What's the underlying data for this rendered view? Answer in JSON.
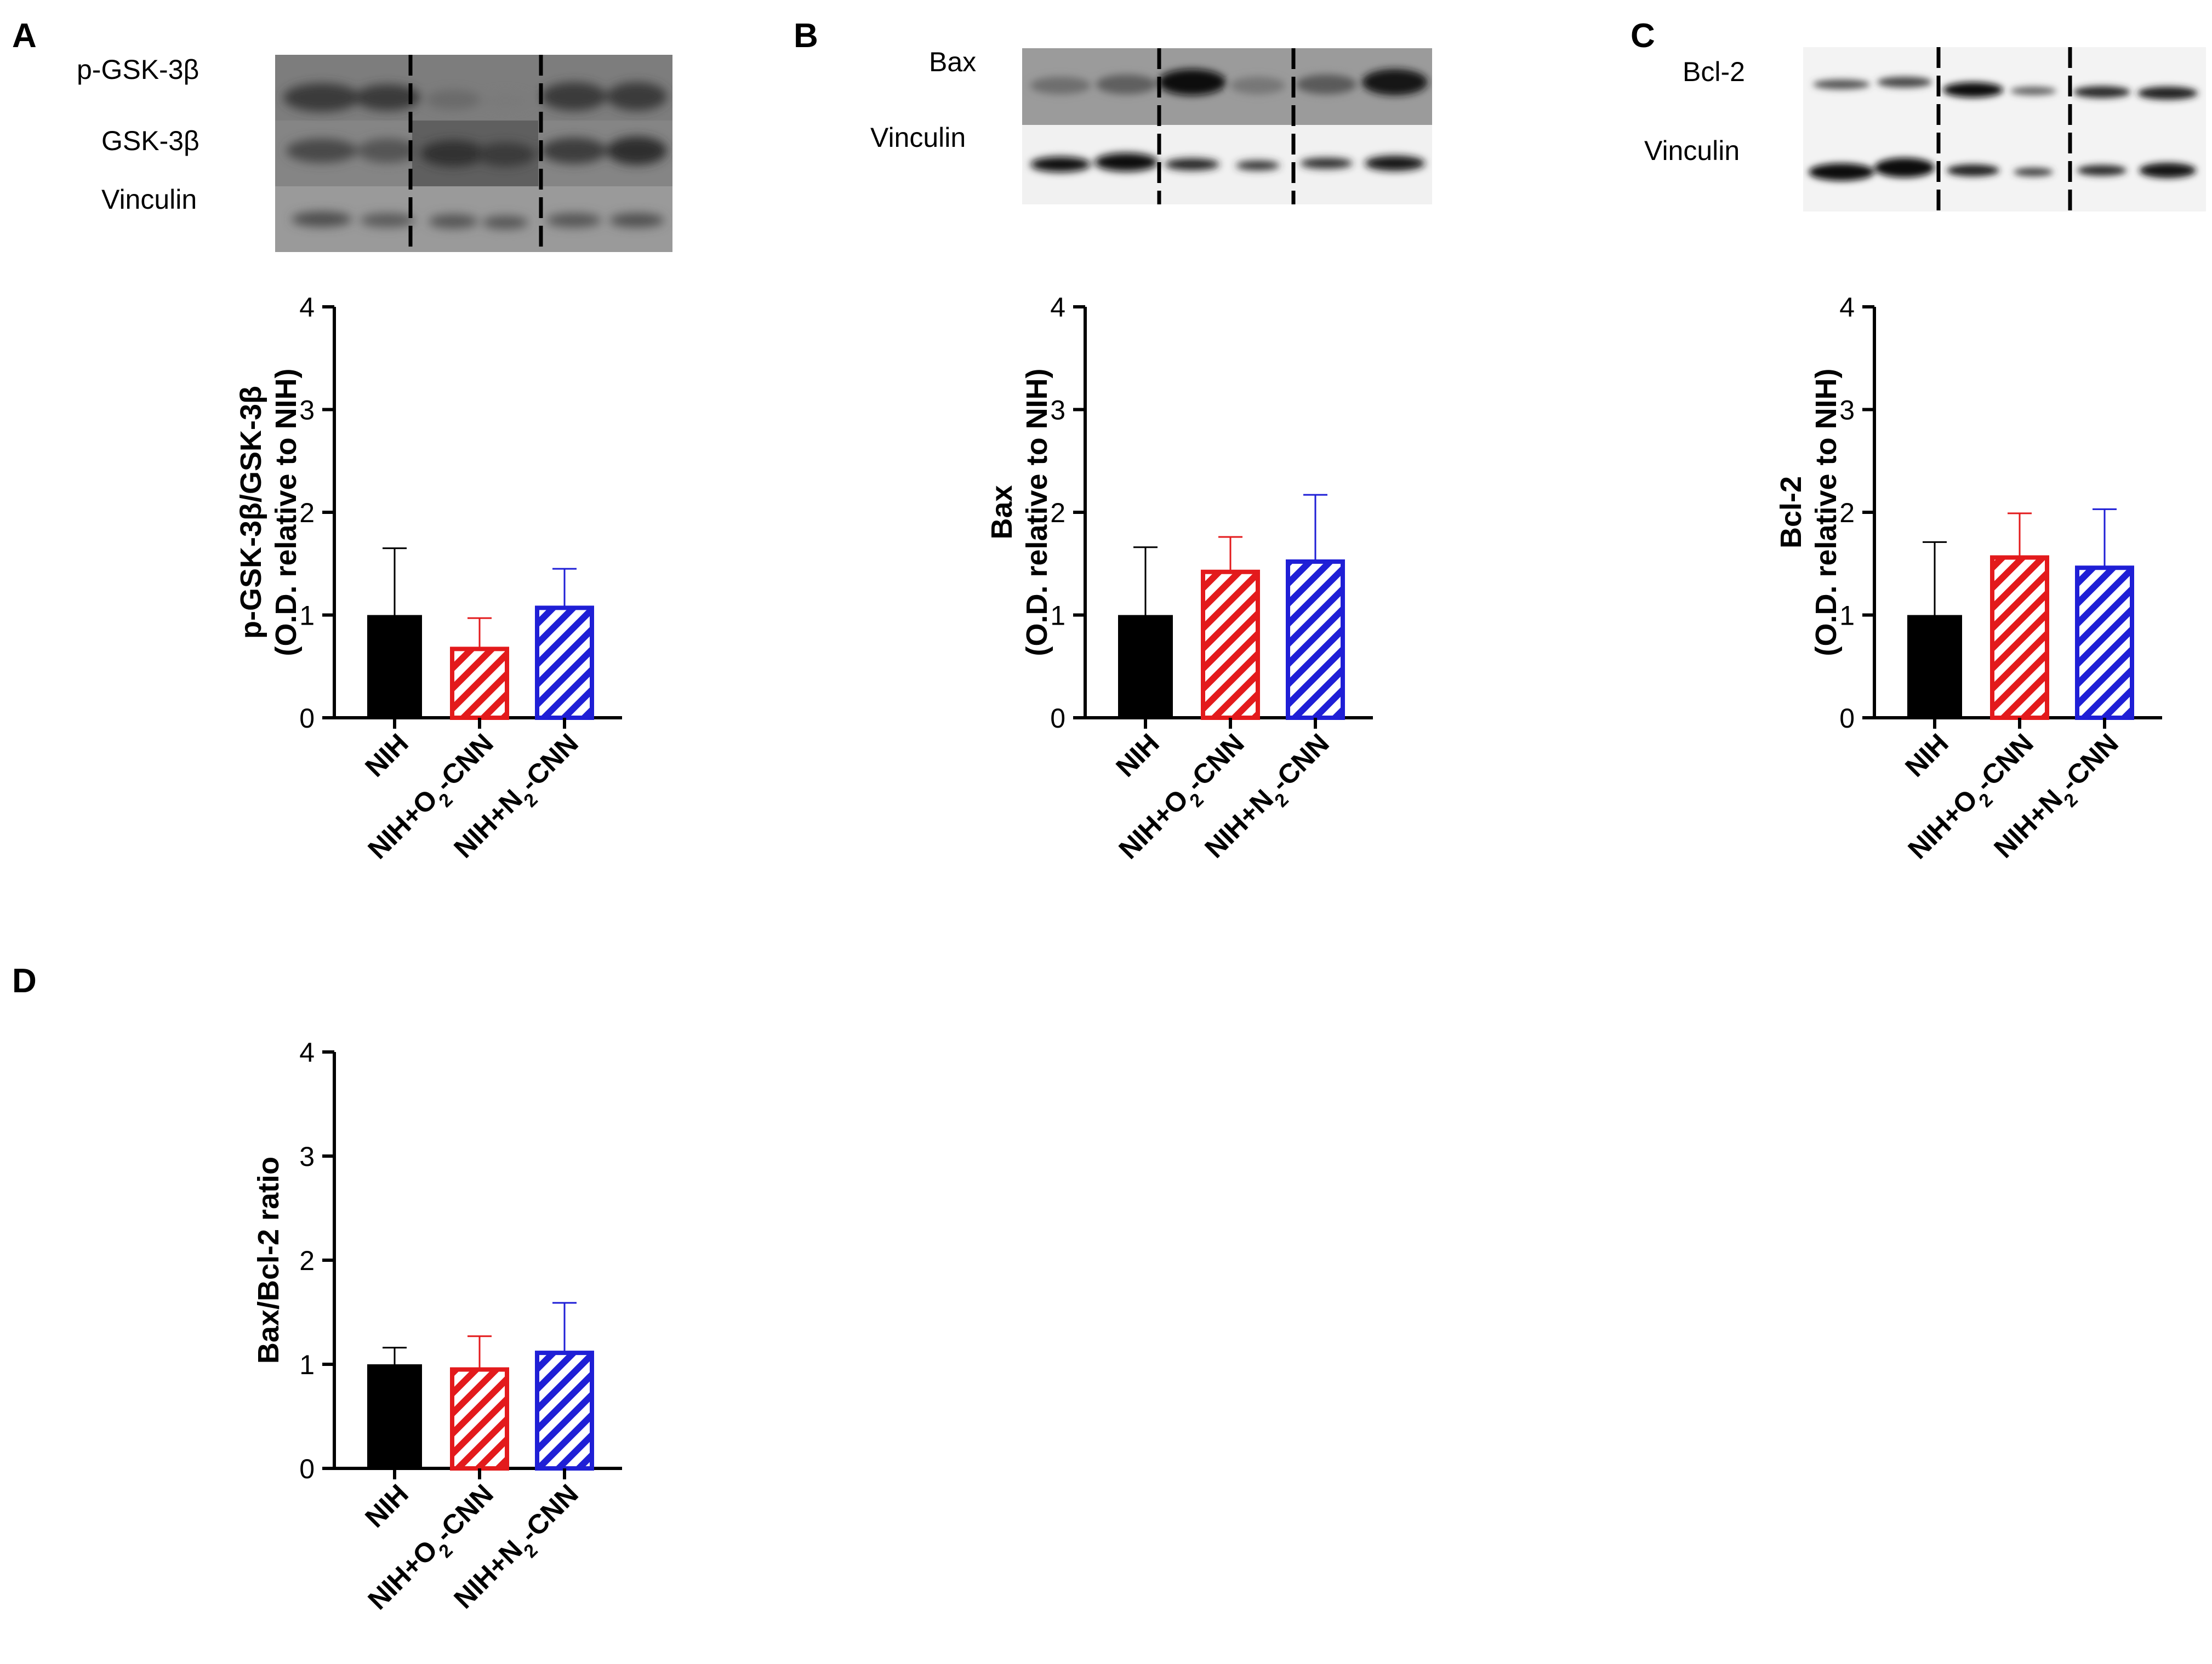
{
  "colors": {
    "nih": "#000000",
    "o2": "#e31a1c",
    "n2": "#1f1fd6",
    "axis": "#000000"
  },
  "panels": [
    {
      "letter": "A",
      "bands": [
        "p-GSK-3β",
        "GSK-3β",
        "Vinculin"
      ]
    },
    {
      "letter": "B",
      "bands": [
        "Bax",
        "Vinculin"
      ]
    },
    {
      "letter": "C",
      "bands": [
        "Bcl-2",
        "Vinculin"
      ]
    },
    {
      "letter": "D",
      "bands": []
    }
  ],
  "chart_data": [
    {
      "type": "bar",
      "panel": "A",
      "categories": [
        "NIH",
        "NIH+O2-CNN",
        "NIH+N2-CNN"
      ],
      "values": [
        1.0,
        0.67,
        1.07
      ],
      "errors": [
        0.65,
        0.3,
        0.38
      ],
      "ylabel_lines": [
        "p-GSK-3β/GSK-3β",
        "(O.D. relative to NIH)"
      ],
      "ylim": [
        0,
        4
      ],
      "yticks": [
        "0",
        "1",
        "2",
        "3",
        "4"
      ]
    },
    {
      "type": "bar",
      "panel": "B",
      "categories": [
        "NIH",
        "NIH+O2-CNN",
        "NIH+N2-CNN"
      ],
      "values": [
        1.0,
        1.42,
        1.52
      ],
      "errors": [
        0.66,
        0.34,
        0.65
      ],
      "ylabel_lines": [
        "Bax",
        "(O.D. relative  to NIH)"
      ],
      "ylim": [
        0,
        4
      ],
      "yticks": [
        "0",
        "1",
        "2",
        "3",
        "4"
      ]
    },
    {
      "type": "bar",
      "panel": "C",
      "categories": [
        "NIH",
        "NIH+O2-CNN",
        "NIH+N2-CNN"
      ],
      "values": [
        1.0,
        1.56,
        1.46
      ],
      "errors": [
        0.71,
        0.43,
        0.57
      ],
      "ylabel_lines": [
        "Bcl-2",
        "(O.D. relative  to NIH)"
      ],
      "ylim": [
        0,
        4
      ],
      "yticks": [
        "0",
        "1",
        "2",
        "3",
        "4"
      ]
    },
    {
      "type": "bar",
      "panel": "D",
      "categories": [
        "NIH",
        "NIH+O2-CNN",
        "NIH+N2-CNN"
      ],
      "values": [
        1.0,
        0.95,
        1.11
      ],
      "errors": [
        0.16,
        0.32,
        0.48
      ],
      "ylabel_lines": [
        "Bax/Bcl-2 ratio"
      ],
      "ylim": [
        0,
        4
      ],
      "yticks": [
        "0",
        "1",
        "2",
        "3",
        "4"
      ]
    }
  ]
}
